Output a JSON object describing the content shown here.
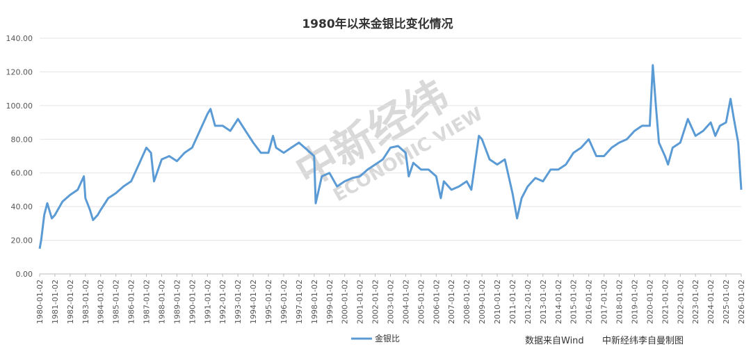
{
  "chart_data": {
    "type": "line",
    "title": "1980年以来金银比变化情况",
    "source": "数据来自Wind",
    "credit": "中新经纬李自曼制图",
    "watermark": "中新经纬",
    "watermark_en": "ECONOMIC VIEW",
    "xlim": [
      1980,
      2026
    ],
    "ylim": [
      0,
      140
    ],
    "grid": true,
    "legend": "bottom",
    "yticks": [
      {
        "value": 0,
        "label": "0.00"
      },
      {
        "value": 20,
        "label": "20.00"
      },
      {
        "value": 40,
        "label": "40.00"
      },
      {
        "value": 60,
        "label": "60.00"
      },
      {
        "value": 80,
        "label": "80.00"
      },
      {
        "value": 100,
        "label": "100.00"
      },
      {
        "value": 120,
        "label": "120.00"
      },
      {
        "value": 140,
        "label": "140.00"
      }
    ],
    "xticks": [
      {
        "value": 1980,
        "label": "1980-01-02"
      },
      {
        "value": 1981,
        "label": "1981-01-02"
      },
      {
        "value": 1982,
        "label": "1982-01-02"
      },
      {
        "value": 1983,
        "label": "1983-01-02"
      },
      {
        "value": 1984,
        "label": "1984-01-02"
      },
      {
        "value": 1985,
        "label": "1985-01-02"
      },
      {
        "value": 1986,
        "label": "1986-01-02"
      },
      {
        "value": 1987,
        "label": "1987-01-02"
      },
      {
        "value": 1988,
        "label": "1988-01-02"
      },
      {
        "value": 1989,
        "label": "1989-01-02"
      },
      {
        "value": 1990,
        "label": "1990-01-02"
      },
      {
        "value": 1991,
        "label": "1991-01-02"
      },
      {
        "value": 1992,
        "label": "1992-01-02"
      },
      {
        "value": 1993,
        "label": "1993-01-02"
      },
      {
        "value": 1994,
        "label": "1994-01-02"
      },
      {
        "value": 1995,
        "label": "1995-01-02"
      },
      {
        "value": 1996,
        "label": "1996-01-02"
      },
      {
        "value": 1997,
        "label": "1997-01-02"
      },
      {
        "value": 1998,
        "label": "1998-01-02"
      },
      {
        "value": 1999,
        "label": "1999-01-02"
      },
      {
        "value": 2000,
        "label": "2000-01-02"
      },
      {
        "value": 2001,
        "label": "2001-01-02"
      },
      {
        "value": 2002,
        "label": "2002-01-02"
      },
      {
        "value": 2003,
        "label": "2003-01-02"
      },
      {
        "value": 2004,
        "label": "2004-01-02"
      },
      {
        "value": 2005,
        "label": "2005-01-02"
      },
      {
        "value": 2006,
        "label": "2006-01-02"
      },
      {
        "value": 2007,
        "label": "2007-01-02"
      },
      {
        "value": 2008,
        "label": "2008-01-02"
      },
      {
        "value": 2009,
        "label": "2009-01-02"
      },
      {
        "value": 2010,
        "label": "2010-01-02"
      },
      {
        "value": 2011,
        "label": "2011-01-02"
      },
      {
        "value": 2012,
        "label": "2012-01-02"
      },
      {
        "value": 2013,
        "label": "2013-01-02"
      },
      {
        "value": 2014,
        "label": "2014-01-02"
      },
      {
        "value": 2015,
        "label": "2015-01-02"
      },
      {
        "value": 2016,
        "label": "2016-01-02"
      },
      {
        "value": 2017,
        "label": "2017-01-02"
      },
      {
        "value": 2018,
        "label": "2018-01-02"
      },
      {
        "value": 2019,
        "label": "2019-01-02"
      },
      {
        "value": 2020,
        "label": "2020-01-02"
      },
      {
        "value": 2021,
        "label": "2021-01-02"
      },
      {
        "value": 2022,
        "label": "2022-01-02"
      },
      {
        "value": 2023,
        "label": "2023-01-02"
      },
      {
        "value": 2024,
        "label": "2024-01-02"
      },
      {
        "value": 2025,
        "label": "2025-01-02"
      },
      {
        "value": 2026,
        "label": "2026-01-02"
      }
    ],
    "x": [
      1980.0,
      1980.1,
      1980.3,
      1980.5,
      1980.8,
      1981.0,
      1981.5,
      1982.0,
      1982.5,
      1982.9,
      1983.0,
      1983.3,
      1983.5,
      1983.8,
      1984.0,
      1984.5,
      1985.0,
      1985.5,
      1986.0,
      1986.5,
      1987.0,
      1987.3,
      1987.5,
      1988.0,
      1988.5,
      1989.0,
      1989.5,
      1990.0,
      1990.5,
      1991.0,
      1991.2,
      1991.5,
      1992.0,
      1992.5,
      1993.0,
      1993.5,
      1994.0,
      1994.5,
      1995.0,
      1995.3,
      1995.5,
      1996.0,
      1996.5,
      1997.0,
      1997.5,
      1998.0,
      1998.1,
      1998.5,
      1999.0,
      1999.5,
      2000.0,
      2000.5,
      2001.0,
      2001.5,
      2002.0,
      2002.5,
      2003.0,
      2003.5,
      2004.0,
      2004.2,
      2004.5,
      2005.0,
      2005.5,
      2006.0,
      2006.3,
      2006.5,
      2007.0,
      2007.5,
      2008.0,
      2008.3,
      2008.8,
      2009.0,
      2009.5,
      2010.0,
      2010.5,
      2011.0,
      2011.3,
      2011.6,
      2012.0,
      2012.5,
      2013.0,
      2013.5,
      2014.0,
      2014.5,
      2015.0,
      2015.5,
      2016.0,
      2016.5,
      2017.0,
      2017.5,
      2018.0,
      2018.5,
      2019.0,
      2019.5,
      2020.0,
      2020.2,
      2020.4,
      2020.6,
      2021.0,
      2021.2,
      2021.5,
      2022.0,
      2022.5,
      2023.0,
      2023.5,
      2024.0,
      2024.3,
      2024.6,
      2025.0,
      2025.3,
      2025.5,
      2025.8,
      2026.0
    ],
    "series": [
      {
        "name": "金银比",
        "color": "#5b9bd5",
        "values": [
          15,
          20,
          35,
          42,
          33,
          35,
          43,
          47,
          50,
          58,
          45,
          38,
          32,
          35,
          38,
          45,
          48,
          52,
          55,
          65,
          75,
          72,
          55,
          68,
          70,
          67,
          72,
          75,
          85,
          95,
          98,
          88,
          88,
          85,
          92,
          85,
          78,
          72,
          72,
          82,
          75,
          72,
          75,
          78,
          74,
          70,
          42,
          58,
          60,
          52,
          55,
          57,
          58,
          62,
          65,
          68,
          75,
          76,
          72,
          58,
          66,
          62,
          62,
          58,
          45,
          55,
          50,
          52,
          55,
          50,
          82,
          80,
          68,
          65,
          68,
          48,
          33,
          45,
          52,
          57,
          55,
          62,
          62,
          65,
          72,
          75,
          80,
          70,
          70,
          75,
          78,
          80,
          85,
          88,
          88,
          124,
          100,
          78,
          70,
          65,
          75,
          78,
          92,
          82,
          85,
          90,
          82,
          88,
          90,
          104,
          93,
          78,
          50
        ]
      }
    ]
  }
}
